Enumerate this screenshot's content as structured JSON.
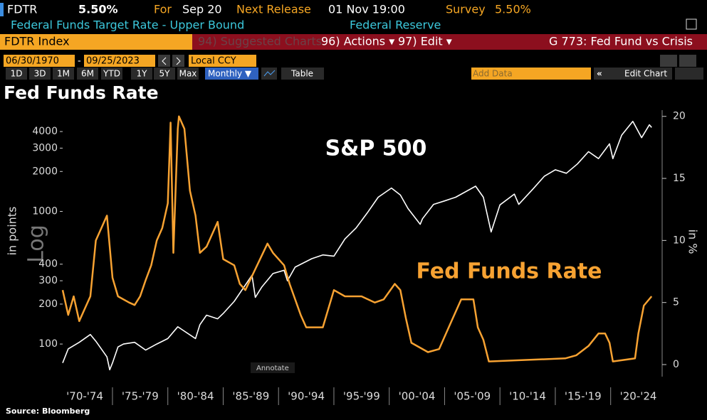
{
  "ui": {
    "header": {
      "ticker": "FDTR",
      "last": "5.50%",
      "for_label": "For",
      "for_value": "Sep 20",
      "next_label": "Next Release",
      "next_value": "01 Nov 19:00",
      "survey_label": "Survey",
      "survey_value": "5.50%",
      "description": "Federal Funds Target Rate - Upper Bound",
      "agency": "Federal Reserve"
    },
    "menu": {
      "security": "FDTR Index",
      "suggested": "94) Suggested Charts",
      "actions": "96) Actions ▾",
      "edit": "97) Edit ▾",
      "chart_id": "G 773: Fed Fund vs Crisis"
    },
    "range": {
      "start": "06/30/1970",
      "separator": "-",
      "end": "09/25/2023",
      "currency": "Local CCY"
    },
    "periods": [
      "1D",
      "3D",
      "1M",
      "6M",
      "YTD",
      "1Y",
      "5Y",
      "Max"
    ],
    "frequency": "Monthly ▼",
    "table": "Table",
    "add_data": "Add Data",
    "edit_chart": "Edit Chart",
    "annotate": "Annotate"
  },
  "chart_data": {
    "type": "line",
    "title": "Fed Funds Rate",
    "ylabel": "in points",
    "log_label": "Log",
    "y2label": "in %",
    "source": "Source: Bloomberg",
    "ylog": true,
    "grid": false,
    "xlim": [
      1970.5,
      2023.75
    ],
    "xticks": [
      {
        "value": 1972.5,
        "label": "'70-'74"
      },
      {
        "value": 1977.5,
        "label": "'75-'79"
      },
      {
        "value": 1982.5,
        "label": "'80-'84"
      },
      {
        "value": 1987.5,
        "label": "'85-'89"
      },
      {
        "value": 1992.5,
        "label": "'90-'94"
      },
      {
        "value": 1997.5,
        "label": "'95-'99"
      },
      {
        "value": 2002.5,
        "label": "'00-'04"
      },
      {
        "value": 2007.5,
        "label": "'05-'09"
      },
      {
        "value": 2012.5,
        "label": "'10-'14"
      },
      {
        "value": 2017.5,
        "label": "'15-'19"
      },
      {
        "value": 2022.5,
        "label": "'20-'24"
      }
    ],
    "ylim": [
      70,
      5800
    ],
    "yticks": [
      100,
      200,
      300,
      400,
      1000,
      2000,
      3000,
      4000
    ],
    "y2lim": [
      0,
      20.5
    ],
    "y2ticks": [
      0,
      5,
      10,
      15,
      20
    ],
    "series": [
      {
        "name": "S&P 500",
        "color": "#ffffff",
        "x": [
          1970.5,
          1971,
          1972,
          1973,
          1973.5,
          1974.5,
          1974.75,
          1975,
          1975.5,
          1976,
          1977,
          1978,
          1979,
          1980,
          1980.9,
          1982.5,
          1982.9,
          1983.5,
          1984.5,
          1985,
          1986,
          1987.6,
          1987.9,
          1988.5,
          1989.5,
          1990.5,
          1990.8,
          1991.5,
          1993,
          1994,
          1995,
          1996,
          1997,
          1998,
          1999,
          2000.2,
          2001,
          2001.7,
          2002.8,
          2003,
          2004,
          2005,
          2006,
          2007.8,
          2008.5,
          2009.2,
          2010,
          2011.3,
          2011.7,
          2013,
          2014,
          2015,
          2016,
          2017,
          2018,
          2018.9,
          2019.9,
          2020.2,
          2021,
          2022,
          2022.8,
          2023.5,
          2023.7
        ],
        "values": [
          72,
          92,
          103,
          118,
          105,
          80,
          64,
          72,
          95,
          100,
          103,
          90,
          100,
          110,
          135,
          110,
          140,
          165,
          155,
          170,
          210,
          330,
          225,
          270,
          340,
          360,
          300,
          380,
          440,
          470,
          460,
          620,
          750,
          970,
          1280,
          1500,
          1330,
          1050,
          800,
          880,
          1130,
          1200,
          1280,
          1550,
          1280,
          700,
          1120,
          1350,
          1130,
          1480,
          1840,
          2060,
          1940,
          2280,
          2820,
          2500,
          3230,
          2500,
          3760,
          4770,
          3600,
          4500,
          4300
        ]
      },
      {
        "name": "Fed Funds Rate",
        "color": "#f7a232",
        "axis": "y2",
        "x": [
          1970.5,
          1971,
          1971.5,
          1972,
          1972.5,
          1973,
          1973.5,
          1974.5,
          1975,
          1975.5,
          1976.5,
          1977,
          1977.5,
          1978,
          1978.5,
          1979,
          1979.5,
          1980,
          1980.25,
          1980.5,
          1980.9,
          1981,
          1981.5,
          1982,
          1982.5,
          1982.9,
          1983.5,
          1984.5,
          1985,
          1986,
          1986.5,
          1987,
          1987.8,
          1989,
          1989.5,
          1990.5,
          1991,
          1992,
          1992.5,
          1994,
          1994.5,
          1995,
          1996,
          1997.5,
          1998.7,
          1999.5,
          2000.5,
          2001,
          2001.5,
          2002,
          2003.5,
          2004.5,
          2005.5,
          2006.5,
          2007.6,
          2008,
          2008.5,
          2009,
          2015.9,
          2016.9,
          2018,
          2018.9,
          2019.5,
          2019.9,
          2020.2,
          2022.2,
          2022.5,
          2023,
          2023.7
        ],
        "values": [
          6,
          4,
          5.5,
          3.5,
          4.5,
          5.5,
          10,
          12,
          7,
          5.5,
          5,
          4.8,
          5.5,
          6.8,
          8,
          10,
          11,
          13,
          19.5,
          9,
          19,
          20,
          19,
          14,
          12,
          9,
          9.5,
          11.5,
          8.5,
          8,
          6.5,
          6,
          7.5,
          9.75,
          9,
          8,
          6.5,
          4,
          3,
          3,
          4.5,
          6,
          5.5,
          5.5,
          5,
          5.25,
          6.5,
          6,
          3.75,
          1.75,
          1,
          1.25,
          3.25,
          5.25,
          5.25,
          3,
          2,
          0.25,
          0.5,
          0.75,
          1.5,
          2.5,
          2.5,
          1.75,
          0.25,
          0.5,
          2.5,
          4.75,
          5.5
        ]
      }
    ]
  }
}
